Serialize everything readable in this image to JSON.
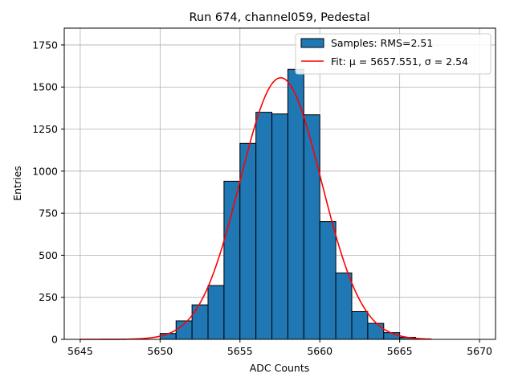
{
  "chart_data": {
    "type": "bar",
    "title": "Run 674, channel059, Pedestal",
    "xlabel": "ADC Counts",
    "ylabel": "Entries",
    "xlim": [
      5644,
      5671
    ],
    "ylim": [
      0,
      1850
    ],
    "xticks": [
      5645,
      5650,
      5655,
      5660,
      5665,
      5670
    ],
    "yticks": [
      0,
      250,
      500,
      750,
      1000,
      1250,
      1500,
      1750
    ],
    "grid": true,
    "legend_position": "top-right",
    "histogram": {
      "name": "Samples: RMS=2.51",
      "color": "#1f77b4",
      "bin_width": 1,
      "bin_starts": [
        5650,
        5651,
        5652,
        5653,
        5654,
        5655,
        5656,
        5657,
        5658,
        5659,
        5660,
        5661,
        5662,
        5663,
        5664,
        5665
      ],
      "values": [
        35,
        110,
        205,
        320,
        940,
        1165,
        1350,
        1340,
        1605,
        1335,
        700,
        395,
        165,
        95,
        40,
        12
      ]
    },
    "fit": {
      "name": "Fit: μ = 5657.551, σ = 2.54",
      "color": "#ff0000",
      "mu": 5657.551,
      "sigma": 2.54,
      "amplitude": 1555,
      "x_range": [
        5645,
        5667
      ]
    }
  }
}
